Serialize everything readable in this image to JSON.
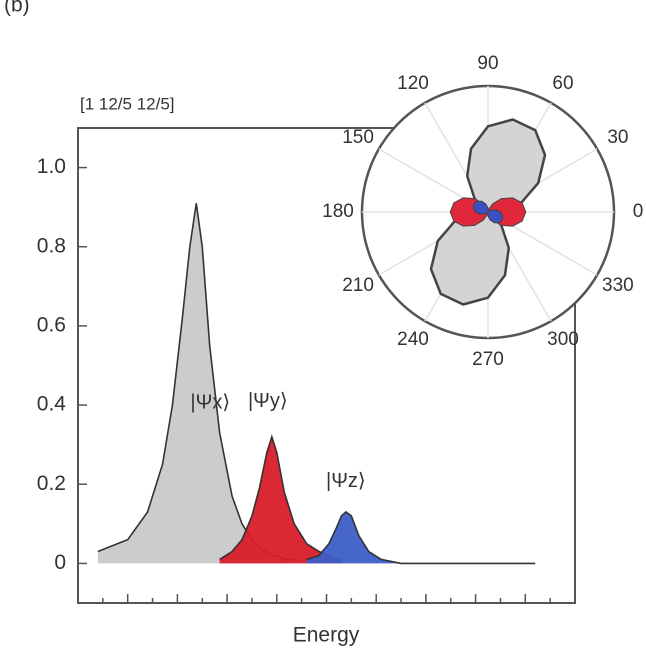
{
  "panel_label": "(b)",
  "chart_data": [
    {
      "type": "area",
      "top_label": "[1 12/5 12/5]",
      "xlabel": "Energy",
      "x": [
        0.4,
        1.0,
        1.4,
        1.7,
        1.9,
        2.1,
        2.25,
        2.38,
        2.5,
        2.65,
        2.85,
        3.1,
        3.3,
        3.5,
        3.65,
        3.8,
        3.9,
        4.0,
        4.15,
        4.35,
        4.6,
        4.85,
        5.05,
        5.2,
        5.3,
        5.39,
        5.5,
        5.65,
        5.85,
        6.1,
        6.5,
        7.5,
        9.2
      ],
      "series": [
        {
          "name": "|Ψx⟩",
          "color": "#c9c9c9",
          "values": [
            0.03,
            0.06,
            0.13,
            0.25,
            0.4,
            0.62,
            0.8,
            0.91,
            0.8,
            0.55,
            0.33,
            0.17,
            0.1,
            0.06,
            0.04,
            0.03,
            0.02,
            0.02,
            0.01,
            0.01,
            null,
            null,
            null,
            null,
            null,
            null,
            null,
            null,
            null,
            null,
            null,
            null,
            null
          ]
        },
        {
          "name": "|Ψy⟩",
          "color": "#d81e2a",
          "values": [
            null,
            null,
            null,
            null,
            null,
            null,
            null,
            null,
            null,
            null,
            0.01,
            0.03,
            0.06,
            0.12,
            0.19,
            0.28,
            0.32,
            0.28,
            0.18,
            0.1,
            0.05,
            0.03,
            0.02,
            0.01,
            0.01,
            null,
            null,
            null,
            null,
            null,
            null,
            null,
            null
          ]
        },
        {
          "name": "|Ψz⟩",
          "color": "#3c5ec8",
          "values": [
            null,
            null,
            null,
            null,
            null,
            null,
            null,
            null,
            null,
            null,
            null,
            null,
            null,
            null,
            null,
            null,
            null,
            null,
            null,
            null,
            0.01,
            0.02,
            0.05,
            0.09,
            0.12,
            0.13,
            0.12,
            0.07,
            0.03,
            0.01,
            0,
            0,
            0
          ]
        }
      ],
      "xlim": [
        0,
        10
      ],
      "ylim": [
        -0.1,
        1.1
      ],
      "yticks": [
        0,
        0.2,
        0.4,
        0.6,
        0.8,
        {
          "value": 1,
          "label": "1.0"
        }
      ]
    },
    {
      "type": "polar",
      "theta": [
        0,
        15,
        30,
        45,
        60,
        75,
        90,
        105,
        120,
        135,
        150,
        165,
        180,
        195,
        210,
        225,
        240,
        255,
        270,
        285,
        300,
        315,
        330,
        345
      ],
      "rlim": [
        0,
        1
      ],
      "thetaticks": [
        0,
        30,
        60,
        90,
        120,
        150,
        180,
        210,
        240,
        270,
        300,
        330
      ],
      "series": [
        {
          "color": "#d4d4d4",
          "r": [
            0.11,
            0.27,
            0.46,
            0.64,
            0.75,
            0.76,
            0.68,
            0.52,
            0.33,
            0.15,
            0.04,
            0.03,
            0.11,
            0.27,
            0.46,
            0.64,
            0.75,
            0.76,
            0.68,
            0.52,
            0.33,
            0.15,
            0.04,
            0.03
          ]
        },
        {
          "color": "#e0283a",
          "r": [
            0.3,
            0.28,
            0.225,
            0.15,
            0.075,
            0.02,
            0,
            0.02,
            0.075,
            0.15,
            0.225,
            0.28,
            0.3,
            0.28,
            0.225,
            0.15,
            0.075,
            0.02,
            0,
            0.02,
            0.075,
            0.15,
            0.225,
            0.28
          ]
        },
        {
          "color": "#3a4fc0",
          "r": [
            0.098,
            0.065,
            0.033,
            0.009,
            0,
            0.009,
            0.033,
            0.065,
            0.098,
            0.121,
            0.13,
            0.121,
            0.098,
            0.065,
            0.033,
            0.009,
            0,
            0.009,
            0.033,
            0.065,
            0.098,
            0.121,
            0.13,
            0.121
          ]
        }
      ]
    }
  ]
}
